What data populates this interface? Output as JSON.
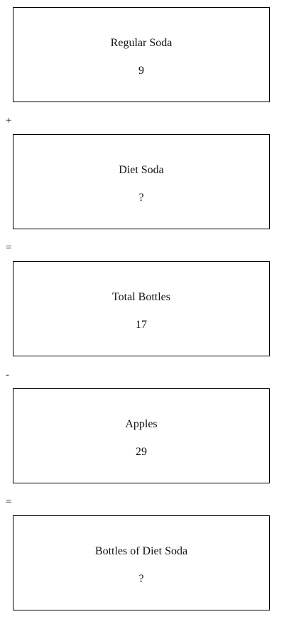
{
  "boxes": [
    {
      "label": "Regular Soda",
      "value": "9"
    },
    {
      "label": "Diet Soda",
      "value": "?"
    },
    {
      "label": "Total Bottles",
      "value": "17"
    },
    {
      "label": "Apples",
      "value": "29"
    },
    {
      "label": "Bottles of Diet Soda",
      "value": "?"
    }
  ],
  "operators": [
    "+",
    "=",
    "-",
    "="
  ]
}
